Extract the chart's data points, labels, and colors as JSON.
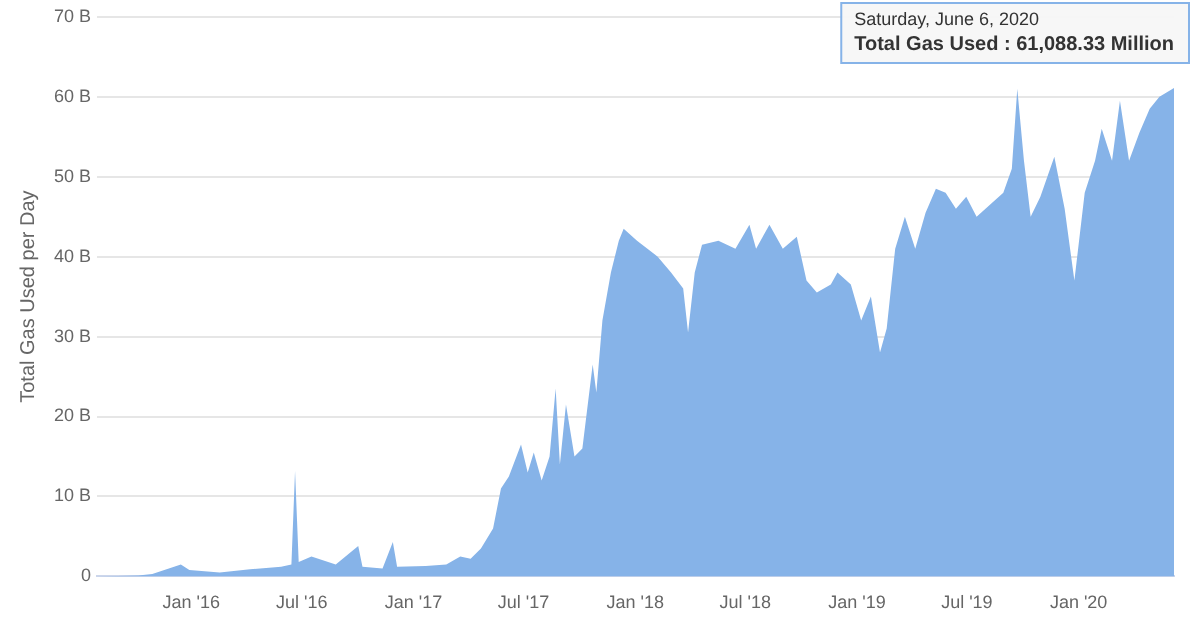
{
  "chart_data": {
    "type": "area",
    "ylabel": "Total Gas Used per Day",
    "x": [
      "2015-07-30",
      "2015-10-06",
      "2015-10-29",
      "2015-12-15",
      "2015-12-29",
      "2016-02-17",
      "2016-04-07",
      "2016-05-28",
      "2016-06-14",
      "2016-06-20",
      "2016-06-26",
      "2016-07-17",
      "2016-08-26",
      "2016-10-02",
      "2016-10-09",
      "2016-11-11",
      "2016-11-28",
      "2016-12-05",
      "2017-01-21",
      "2017-02-24",
      "2017-03-19",
      "2017-04-05",
      "2017-04-22",
      "2017-05-12",
      "2017-05-25",
      "2017-06-07",
      "2017-06-27",
      "2017-07-08",
      "2017-07-18",
      "2017-07-31",
      "2017-08-13",
      "2017-08-23",
      "2017-08-30",
      "2017-09-09",
      "2017-09-23",
      "2017-10-06",
      "2017-10-23",
      "2017-10-29",
      "2017-11-08",
      "2017-11-22",
      "2017-12-05",
      "2017-12-13",
      "2018-01-04",
      "2018-02-07",
      "2018-03-01",
      "2018-03-21",
      "2018-03-29",
      "2018-04-09",
      "2018-04-21",
      "2018-05-18",
      "2018-06-15",
      "2018-07-08",
      "2018-07-19",
      "2018-08-10",
      "2018-09-01",
      "2018-09-24",
      "2018-10-10",
      "2018-10-27",
      "2018-11-19",
      "2018-11-30",
      "2018-12-22",
      "2019-01-08",
      "2019-01-24",
      "2019-02-08",
      "2019-02-19",
      "2019-03-05",
      "2019-03-21",
      "2019-04-07",
      "2019-04-24",
      "2019-05-11",
      "2019-05-27",
      "2019-06-13",
      "2019-06-30",
      "2019-07-17",
      "2019-08-08",
      "2019-08-30",
      "2019-09-13",
      "2019-09-22",
      "2019-10-03",
      "2019-10-14",
      "2019-10-30",
      "2019-11-22",
      "2019-12-09",
      "2019-12-25",
      "2020-01-11",
      "2020-01-28",
      "2020-02-08",
      "2020-02-25",
      "2020-03-09",
      "2020-03-24",
      "2020-04-10",
      "2020-04-27",
      "2020-05-13",
      "2020-06-06"
    ],
    "series": [
      {
        "color": "#86b3e8",
        "values": [
          0,
          0.1,
          0.3,
          1.5,
          0.8,
          0.5,
          0.9,
          1.2,
          1.5,
          13.2,
          1.8,
          2.5,
          1.5,
          3.8,
          1.2,
          1.0,
          4.3,
          1.2,
          1.3,
          1.5,
          2.5,
          2.2,
          3.5,
          6,
          11,
          12.5,
          16.5,
          13,
          15.5,
          12,
          15,
          23.5,
          14,
          21.5,
          15,
          16,
          26.5,
          23,
          32,
          38,
          42,
          43.5,
          42,
          40,
          38,
          36,
          30.5,
          38,
          41.5,
          42,
          41,
          44,
          41,
          44,
          41,
          42.5,
          37,
          35.5,
          36.5,
          38,
          36.5,
          32,
          35,
          28,
          31,
          41,
          45,
          41,
          45.5,
          48.5,
          48,
          46,
          47.5,
          45,
          46.5,
          48,
          51,
          61,
          52,
          45,
          47.5,
          52.5,
          46,
          37,
          48,
          52,
          56,
          52,
          59.5,
          52,
          55.5,
          58.5,
          60,
          61.1
        ]
      }
    ],
    "xlim": [
      "2015-07-30",
      "2020-06-06"
    ],
    "xticks": [
      {
        "value": "2016-01-01",
        "label": "Jan '16"
      },
      {
        "value": "2016-07-01",
        "label": "Jul '16"
      },
      {
        "value": "2017-01-01",
        "label": "Jan '17"
      },
      {
        "value": "2017-07-01",
        "label": "Jul '17"
      },
      {
        "value": "2018-01-01",
        "label": "Jan '18"
      },
      {
        "value": "2018-07-01",
        "label": "Jul '18"
      },
      {
        "value": "2019-01-01",
        "label": "Jan '19"
      },
      {
        "value": "2019-07-01",
        "label": "Jul '19"
      },
      {
        "value": "2020-01-01",
        "label": "Jan '20"
      }
    ],
    "ylim": [
      0,
      70
    ],
    "yticks": [
      0,
      {
        "value": 10,
        "label": "10 B"
      },
      {
        "value": 20,
        "label": "20 B"
      },
      {
        "value": 30,
        "label": "30 B"
      },
      {
        "value": 40,
        "label": "40 B"
      },
      {
        "value": 50,
        "label": "50 B"
      },
      {
        "value": 60,
        "label": "60 B"
      },
      {
        "value": 70,
        "label": "70 B"
      }
    ],
    "grid": "y",
    "annotations": [
      "Saturday, June 6, 2020",
      "Total Gas Used : 61,088.33 Million"
    ]
  }
}
